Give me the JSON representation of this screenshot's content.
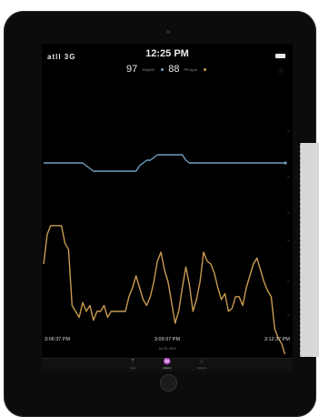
{
  "status_bar": {
    "signal": "atll 3G",
    "time": "12:25 PM"
  },
  "readout": {
    "spo2_value": "97",
    "spo2_unit": "%SpO2",
    "pr_value": "88",
    "pr_unit": "PR bpm"
  },
  "colors": {
    "spo2": "#6f9fbf",
    "pr": "#c89a50",
    "background": "#000000"
  },
  "chart_data": {
    "type": "line",
    "x_tick_labels": [
      "3:06:37 PM",
      "3:09:37 PM",
      "3:12:37 PM"
    ],
    "date_label": "Jul 29, 2013",
    "x": [
      0,
      4,
      8,
      12,
      16,
      20,
      24,
      28,
      32,
      36,
      40,
      44,
      48,
      52,
      56,
      60,
      64,
      68,
      72,
      76,
      80,
      84,
      88,
      92,
      96,
      100,
      104,
      108,
      112,
      116,
      120,
      124,
      128,
      132,
      136,
      140,
      144,
      148,
      152,
      156,
      160,
      164,
      168,
      172,
      176,
      180,
      184,
      188,
      192,
      196,
      200,
      204,
      208,
      212,
      216,
      220,
      224,
      228,
      232,
      236,
      240,
      244,
      248,
      252,
      256,
      260,
      264,
      268,
      272
    ],
    "series": [
      {
        "values": [
          0,
          0,
          0,
          0,
          0,
          0,
          0,
          0,
          0,
          0,
          0,
          0,
          -1,
          -2,
          -3,
          -3,
          -3,
          -3,
          -3,
          -3,
          -3,
          -3,
          -3,
          -3,
          -3,
          -3,
          -3,
          -1,
          0,
          1,
          1,
          2,
          3,
          3,
          3,
          3,
          3,
          3,
          3,
          3,
          1,
          0,
          0,
          0,
          0,
          0,
          0,
          0,
          0,
          0,
          0,
          0,
          0,
          0,
          0,
          0,
          0,
          0,
          0,
          0,
          0,
          0,
          0,
          0,
          0,
          0,
          0,
          0,
          0
        ]
      },
      {
        "values": [
          -8,
          2,
          5,
          5,
          5,
          5,
          -1,
          -3,
          -22,
          -24,
          -26,
          -21,
          -24,
          -22,
          -27,
          -24,
          -24,
          -22,
          -26,
          -24,
          -24,
          -24,
          -24,
          -24,
          -19,
          -16,
          -12,
          -16,
          -20,
          -22,
          -19,
          -14,
          -7,
          -4,
          -10,
          -14,
          -21,
          -28,
          -24,
          -16,
          -9,
          -15,
          -24,
          -20,
          -14,
          -4,
          -7,
          -8,
          -11,
          -16,
          -20,
          -18,
          -24,
          -23,
          -19,
          -19,
          -22,
          -16,
          -12,
          -8,
          -6,
          -10,
          -14,
          -17,
          -19,
          -30,
          -33,
          -35,
          -39
        ]
      }
    ]
  },
  "tabs": [
    {
      "glyph": "⇡",
      "label": "Now"
    },
    {
      "glyph": "♒",
      "label": "History"
    },
    {
      "glyph": "○",
      "label": "Options"
    }
  ]
}
